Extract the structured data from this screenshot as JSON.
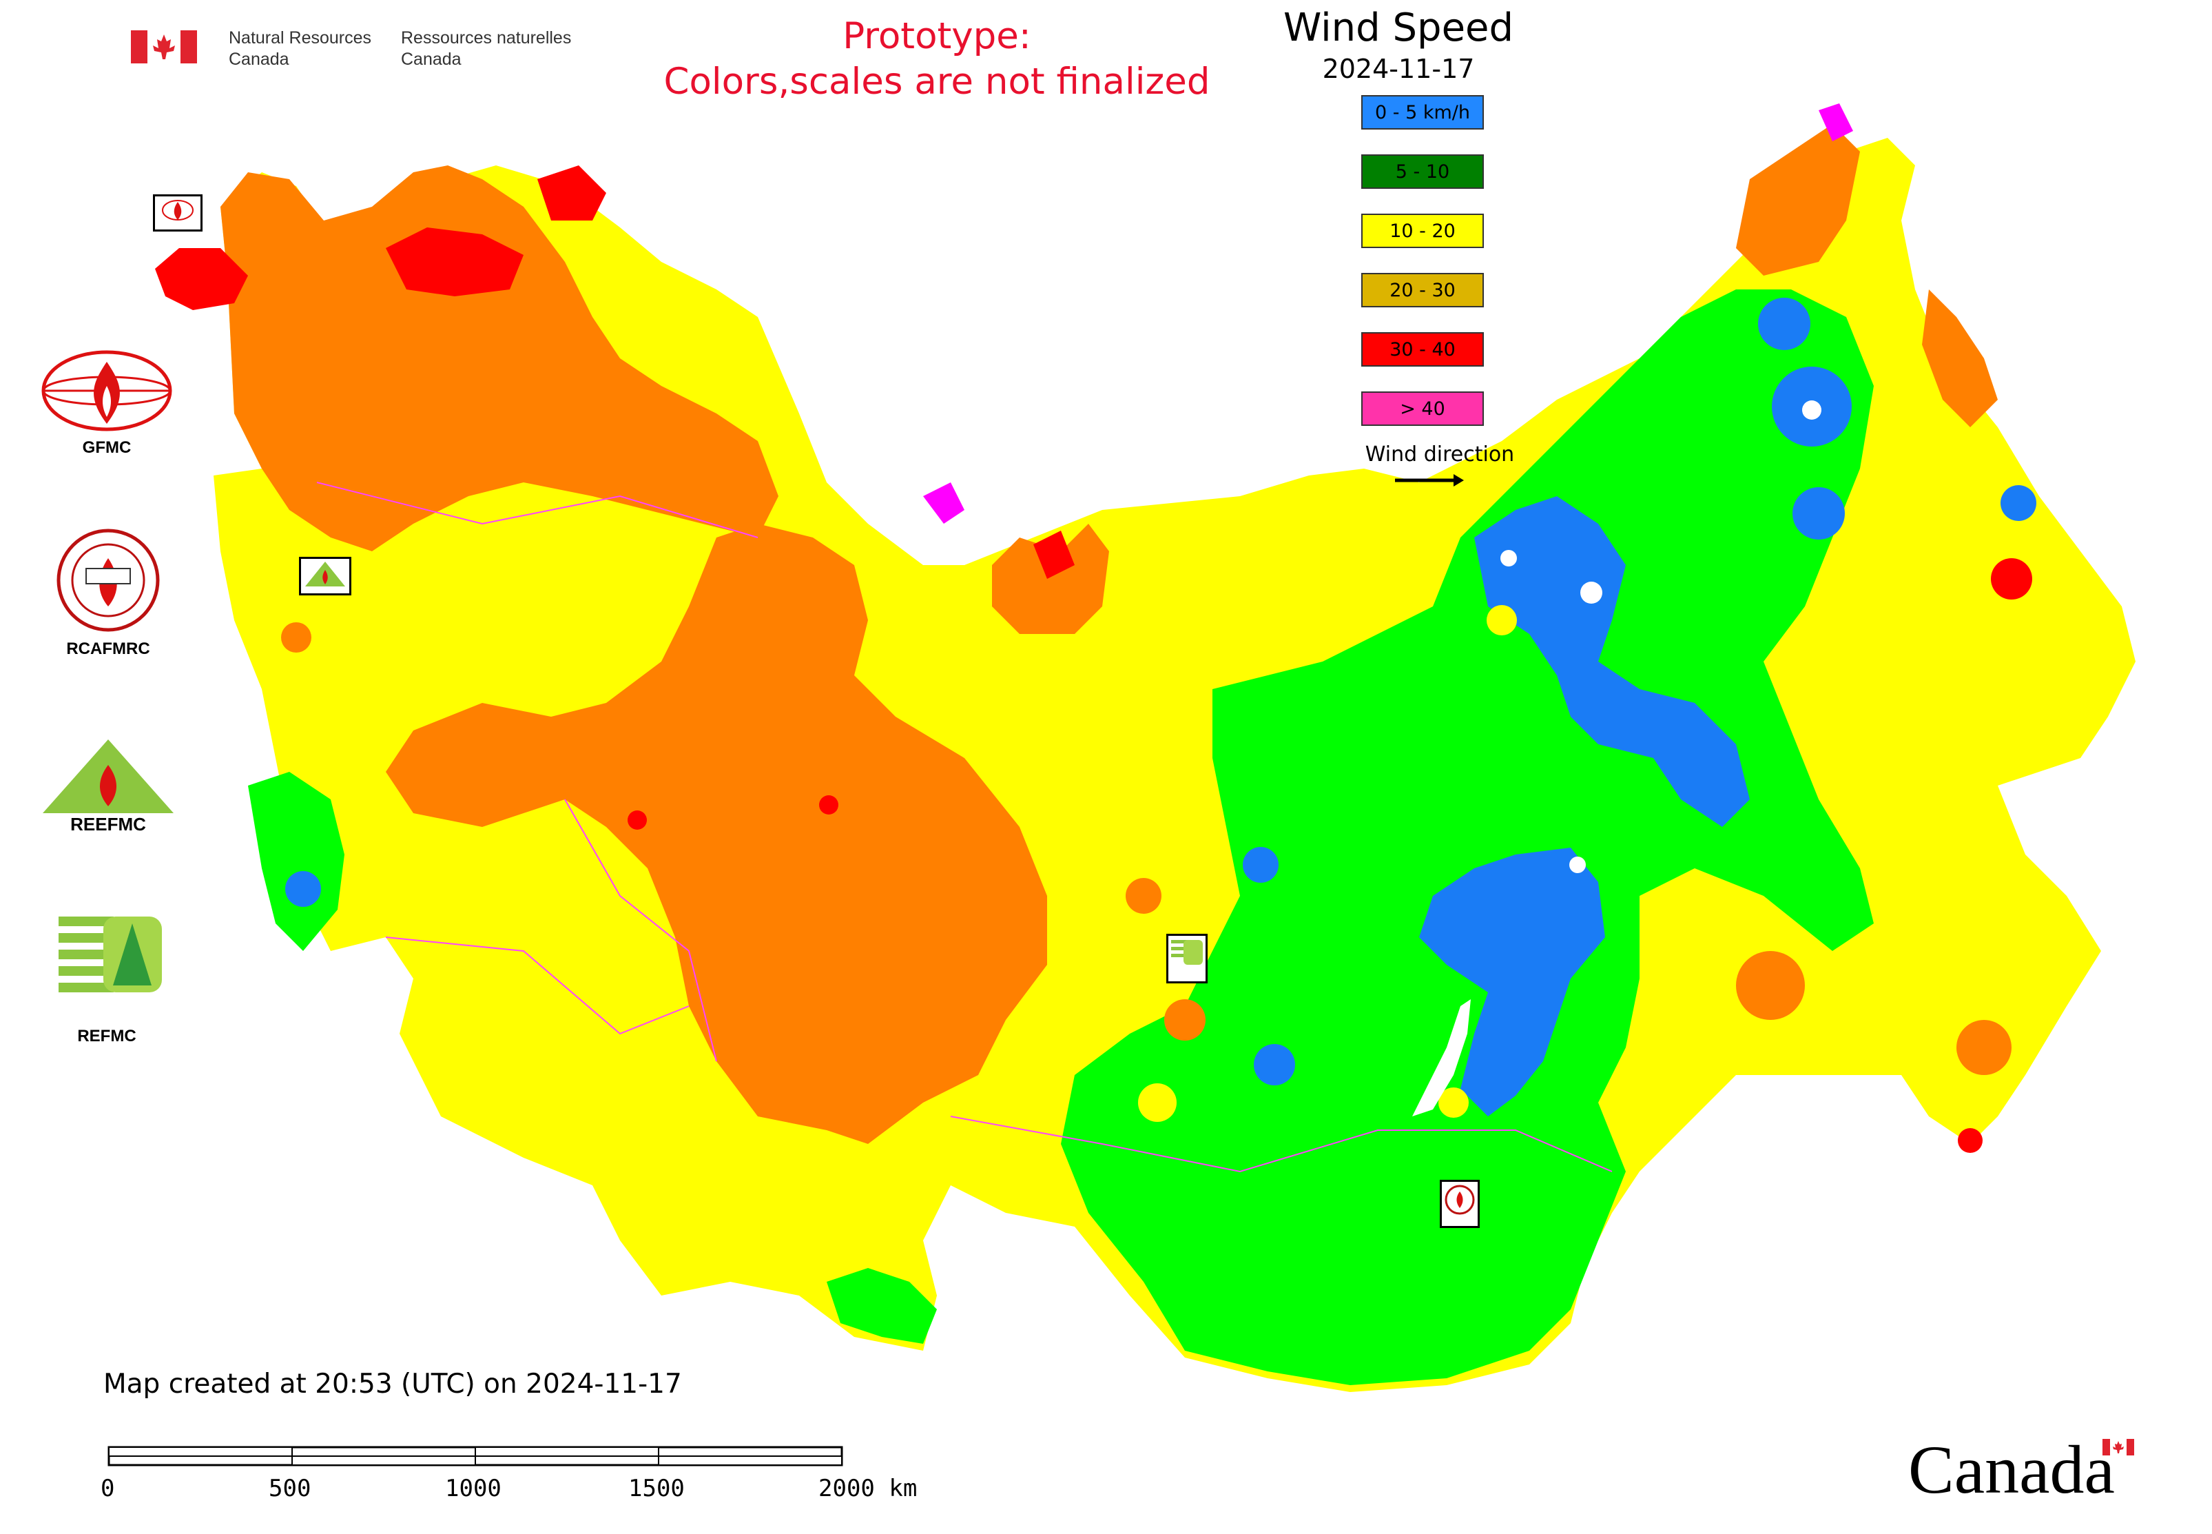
{
  "header": {
    "agency_en_line1": "Natural Resources",
    "agency_en_line2": "Canada",
    "agency_fr_line1": "Ressources naturelles",
    "agency_fr_line2": "Canada",
    "prototype_line1": "Prototype:",
    "prototype_line2": "Colors,scales are not finalized"
  },
  "legend": {
    "title": "Wind Speed",
    "date": "2024-11-17",
    "items": [
      {
        "label": "0 - 5 km/h",
        "color": "#2288ff"
      },
      {
        "label": "5 - 10",
        "color": "#008000"
      },
      {
        "label": "10 - 20",
        "color": "#ffff00"
      },
      {
        "label": "20 - 30",
        "color": "#dcb400"
      },
      {
        "label": "30 - 40",
        "color": "#ff0000"
      },
      {
        "label": "> 40",
        "color": "#ff33aa"
      }
    ],
    "wind_direction_label": "Wind direction"
  },
  "map_colors": {
    "calm": "#1a7cf5",
    "low": "#00ff00",
    "moderate": "#ffff00",
    "high": "#ff8000",
    "very_high": "#ff0000",
    "extreme": "#ff00ff"
  },
  "organizations": [
    {
      "label": "GFMC",
      "icon": "gfmc-fire-globe-icon"
    },
    {
      "label": "RCAFMRC",
      "icon": "rcafmrc-seal-icon"
    },
    {
      "label": "REEFMC",
      "icon": "reefmc-triangle-icon"
    },
    {
      "label": "REFMC",
      "icon": "refmc-stripes-icon"
    }
  ],
  "footer": {
    "created": "Map created at 20:53 (UTC) on 2024-11-17",
    "scale_ticks": [
      "0",
      "500",
      "1000",
      "1500",
      "2000 km"
    ],
    "wordmark": "Canada"
  }
}
